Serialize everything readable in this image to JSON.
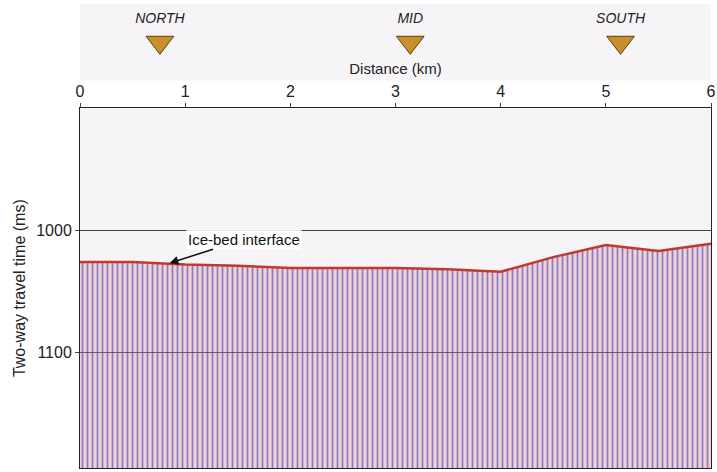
{
  "chart_data": {
    "type": "line",
    "x_title": "Distance (km)",
    "y_title": "Two-way travel time (ms)",
    "x": [
      0,
      0.5,
      1,
      1.5,
      2,
      2.5,
      3,
      3.5,
      4,
      4.5,
      5,
      5.5,
      6
    ],
    "series": [
      {
        "color": "#c0392b",
        "values": [
          1026,
          1026,
          1028,
          1029,
          1031,
          1031,
          1031,
          1032,
          1034,
          1022,
          1012,
          1017,
          1011
        ]
      }
    ],
    "xlim": [
      0,
      6
    ],
    "xticks": [
      0,
      1,
      2,
      3,
      4,
      5,
      6
    ],
    "ylim": [
      1195,
      900
    ],
    "yticks": [
      1000,
      1100
    ],
    "grid": true,
    "annotations": [
      {
        "text": "Ice-bed interface",
        "x": 0.85,
        "y": 1027
      }
    ],
    "sites": [
      {
        "label": "NORTH",
        "x": 0.76,
        "color": "#c8902a"
      },
      {
        "label": "MID",
        "x": 3.14,
        "color": "#c8902a"
      },
      {
        "label": "SOUTH",
        "x": 5.14,
        "color": "#c8902a"
      }
    ]
  }
}
